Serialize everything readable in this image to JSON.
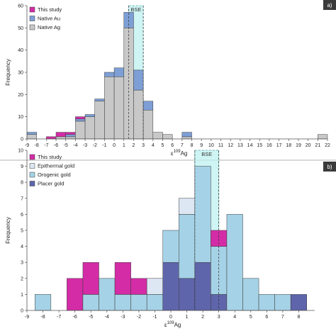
{
  "colors": {
    "this_study": "#d42ca6",
    "native_au": "#7d9fd6",
    "native_ag": "#c8c8c8",
    "epithermal": "#dde7f3",
    "orogenic": "#a5d2e6",
    "placer": "#5f65ab",
    "bse_fill": "#bff0f0",
    "bse_stroke": "#4aa8a8",
    "panel_label_bg": "#3a3a3a"
  },
  "chart_data": [
    {
      "type": "bar",
      "stacked": true,
      "panel_label": "a)",
      "ylabel": "Frequency",
      "xlabel_base": "ε",
      "xlabel_sup": "109",
      "xlabel_sub": "Ag",
      "xlim": [
        -9,
        22
      ],
      "ylim": [
        0,
        60
      ],
      "yticks": [
        "0",
        "10",
        "20",
        "30",
        "40",
        "50",
        "60"
      ],
      "xticks": [
        "-9",
        "-8",
        "-7",
        "-6",
        "-5",
        "-4",
        "-3",
        "-2",
        "-1",
        "0",
        "1",
        "2",
        "3",
        "4",
        "5",
        "6",
        "7",
        "8",
        "9",
        "10",
        "11",
        "12",
        "13",
        "14",
        "15",
        "16",
        "17",
        "18",
        "19",
        "20",
        "21",
        "22"
      ],
      "bin_width": 1,
      "bins": [
        -8.5,
        -6.5,
        -5.5,
        -4.5,
        -3.5,
        -2.5,
        -1.5,
        -0.5,
        0.5,
        1.5,
        2.5,
        3.5,
        4.5,
        5.5,
        7.5,
        21.5
      ],
      "series": [
        {
          "name": "Native Ag",
          "color_key": "native_ag",
          "values": [
            2,
            0,
            1,
            1,
            8,
            10,
            17,
            28,
            28,
            50,
            22,
            13,
            3,
            2,
            1,
            2
          ]
        },
        {
          "name": "Native Au",
          "color_key": "native_au",
          "values": [
            1,
            0,
            0,
            1,
            1,
            1,
            1,
            2,
            4,
            7,
            9,
            4,
            0,
            0,
            2,
            0
          ]
        },
        {
          "name": "This study",
          "color_key": "this_study",
          "values": [
            0,
            1,
            2,
            1,
            1,
            0,
            0,
            0,
            0,
            0,
            0,
            0,
            0,
            0,
            0,
            0
          ]
        }
      ],
      "legend": {
        "placement": "top-left",
        "entries": [
          "This study",
          "Native Au",
          "Native Ag"
        ]
      },
      "bse": {
        "label": "BSE",
        "range": [
          1.5,
          3.0
        ]
      }
    },
    {
      "type": "bar",
      "stacked": true,
      "panel_label": "b)",
      "ylabel": "Frequency",
      "xlabel_base": "ε",
      "xlabel_sup": "109",
      "xlabel_sub": "Ag",
      "xlim": [
        -9,
        9
      ],
      "ylim": [
        0,
        10
      ],
      "yticks": [
        "0",
        "1",
        "2",
        "3",
        "4",
        "5",
        "6",
        "7",
        "8",
        "9",
        "10"
      ],
      "xticks": [
        "-9",
        "-8",
        "-7",
        "-6",
        "-5",
        "-4",
        "-3",
        "-2",
        "-1",
        "0",
        "1",
        "2",
        "3",
        "4",
        "5",
        "6",
        "7",
        "8"
      ],
      "bin_width": 1,
      "bins": [
        -8,
        -6,
        -5,
        -4,
        -3,
        -2,
        -1,
        0,
        1,
        2,
        3,
        4,
        5,
        6,
        7,
        8
      ],
      "series": [
        {
          "name": "Placer gold",
          "color_key": "placer",
          "values": [
            0,
            0,
            0,
            0,
            0,
            0,
            0,
            3,
            2,
            3,
            1,
            0,
            0,
            0,
            0,
            1
          ]
        },
        {
          "name": "Orogenic gold",
          "color_key": "orogenic",
          "values": [
            1,
            0,
            1,
            2,
            1,
            1,
            1,
            2,
            4,
            6,
            3,
            6,
            2,
            1,
            1,
            0
          ]
        },
        {
          "name": "Epithermal gold",
          "color_key": "epithermal",
          "values": [
            0,
            0,
            0,
            0,
            0,
            0,
            1,
            0,
            1,
            0,
            0,
            0,
            0,
            0,
            0,
            0
          ]
        },
        {
          "name": "This study",
          "color_key": "this_study",
          "values": [
            0,
            2,
            2,
            0,
            2,
            1,
            0,
            0,
            0,
            0,
            1,
            0,
            0,
            0,
            0,
            0
          ]
        }
      ],
      "legend": {
        "placement": "top-left",
        "entries": [
          "This study",
          "Epithermal gold",
          "Orogenic gold",
          "Placer gold"
        ]
      },
      "bse": {
        "label": "BSE",
        "range": [
          1.5,
          3.0
        ]
      }
    }
  ]
}
